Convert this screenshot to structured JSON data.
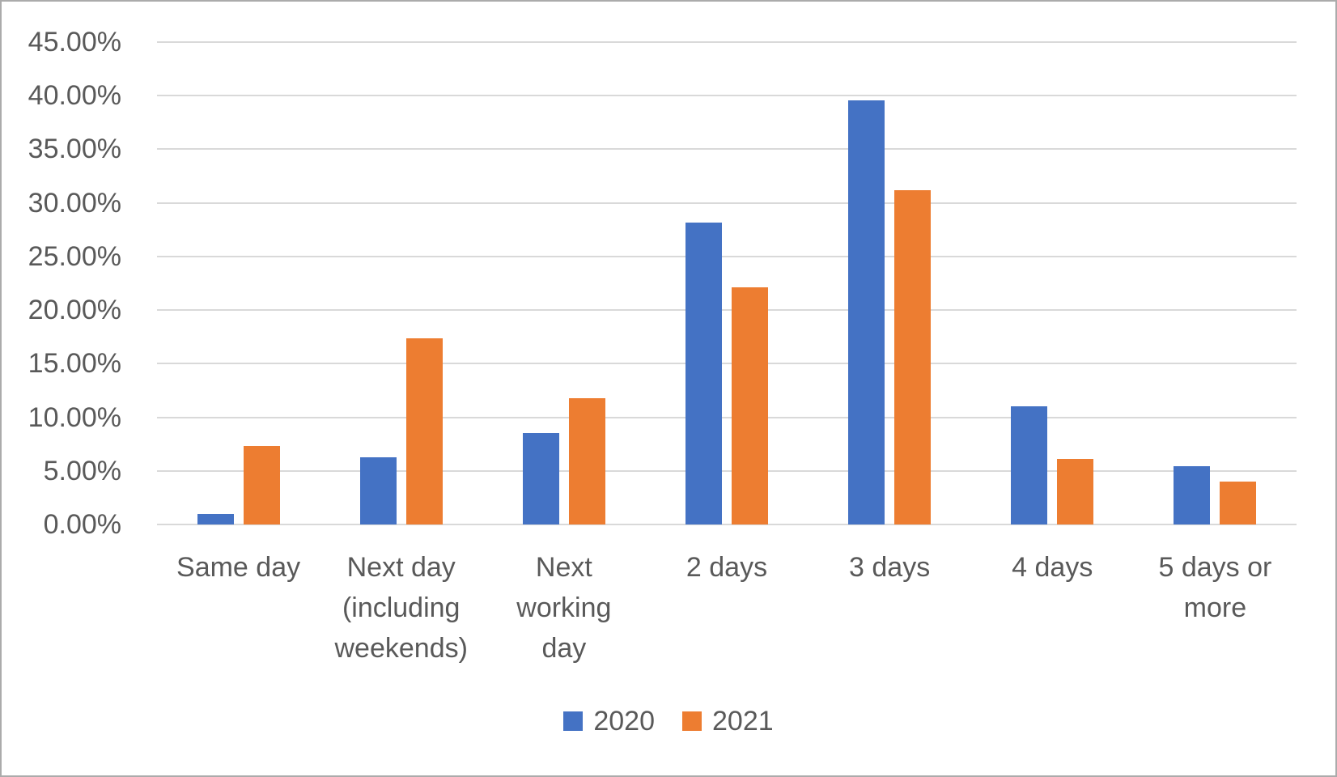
{
  "chart_data": {
    "type": "bar",
    "title": "",
    "xlabel": "",
    "ylabel": "",
    "categories": [
      "Same day",
      "Next day (including weekends)",
      "Next working day",
      "2 days",
      "3 days",
      "4 days",
      "5 days or more"
    ],
    "category_label_lines": [
      [
        "Same day"
      ],
      [
        "Next day",
        "(including",
        "weekends)"
      ],
      [
        "Next",
        "working",
        "day"
      ],
      [
        "2 days"
      ],
      [
        "3 days"
      ],
      [
        "4 days"
      ],
      [
        "5 days or",
        "more"
      ]
    ],
    "series": [
      {
        "name": "2020",
        "color": "#4472C4",
        "values": [
          1.0,
          6.3,
          8.5,
          28.2,
          39.6,
          11.0,
          5.4
        ]
      },
      {
        "name": "2021",
        "color": "#ED7D31",
        "values": [
          7.3,
          17.4,
          11.8,
          22.1,
          31.2,
          6.1,
          4.0
        ]
      }
    ],
    "ylim": [
      0,
      45
    ],
    "y_tick_step": 5,
    "y_tick_labels": [
      "0.00%",
      "5.00%",
      "10.00%",
      "15.00%",
      "20.00%",
      "25.00%",
      "30.00%",
      "35.00%",
      "40.00%",
      "45.00%"
    ],
    "grid": true,
    "legend_position": "bottom",
    "colors": {
      "text": "#595959",
      "gridline": "#D9D9D9",
      "border": "#ABABAB",
      "background": "#FFFFFF"
    }
  }
}
